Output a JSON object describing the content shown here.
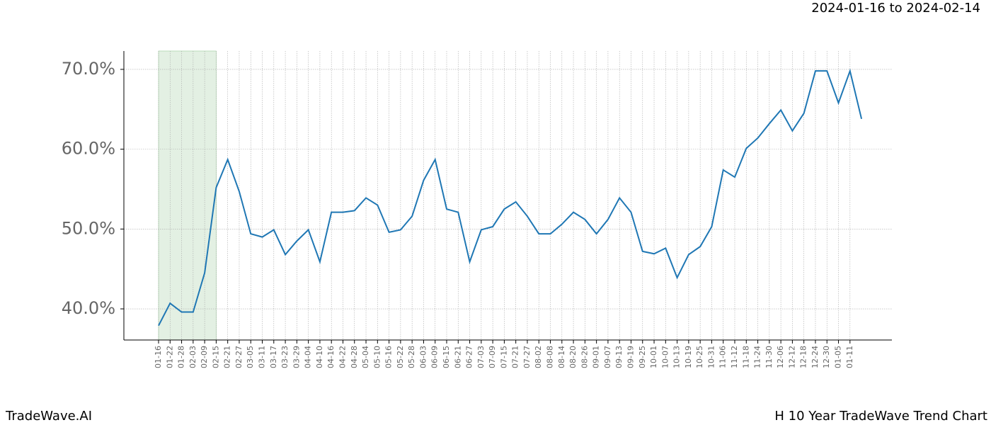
{
  "chart_data": {
    "type": "line",
    "date_range": "2024-01-16 to 2024-02-14",
    "brand": "TradeWave.AI",
    "title": "H 10 Year TradeWave Trend Chart",
    "categories": [
      "01-16",
      "01-22",
      "01-28",
      "02-03",
      "02-09",
      "02-15",
      "02-21",
      "02-27",
      "03-05",
      "03-11",
      "03-17",
      "03-23",
      "03-29",
      "04-04",
      "04-10",
      "04-16",
      "04-22",
      "04-28",
      "05-04",
      "05-10",
      "05-16",
      "05-22",
      "05-28",
      "06-03",
      "06-09",
      "06-15",
      "06-21",
      "06-27",
      "07-03",
      "07-09",
      "07-15",
      "07-21",
      "07-27",
      "08-02",
      "08-08",
      "08-14",
      "08-20",
      "08-26",
      "09-01",
      "09-07",
      "09-13",
      "09-19",
      "09-25",
      "10-01",
      "10-07",
      "10-13",
      "10-19",
      "10-25",
      "10-31",
      "11-06",
      "11-12",
      "11-18",
      "11-24",
      "11-30",
      "12-06",
      "12-12",
      "12-18",
      "12-24",
      "12-30",
      "01-05",
      "01-11",
      null
    ],
    "values": [
      37.9,
      40.7,
      39.6,
      39.6,
      44.5,
      55.2,
      58.7,
      54.7,
      49.4,
      49.0,
      49.9,
      46.8,
      48.5,
      49.9,
      45.9,
      52.1,
      52.1,
      52.3,
      53.9,
      53.0,
      49.6,
      49.9,
      51.6,
      56.1,
      58.7,
      52.5,
      52.1,
      45.9,
      49.9,
      50.3,
      52.5,
      53.4,
      51.6,
      49.4,
      49.4,
      50.6,
      52.1,
      51.2,
      49.4,
      51.2,
      53.9,
      52.1,
      47.2,
      46.9,
      47.6,
      43.9,
      46.8,
      47.8,
      50.3,
      57.4,
      56.5,
      60.1,
      61.4,
      63.2,
      64.9,
      62.3,
      64.5,
      69.8,
      69.8,
      65.8,
      69.8,
      63.8
    ],
    "color": "#1f77b4",
    "highlight_range": [
      "01-16",
      "02-15"
    ],
    "highlight_color": "#e3f0e3",
    "ylim": [
      36.1,
      72.3
    ],
    "yticks": [
      {
        "value": 40,
        "label": "40.0%"
      },
      {
        "value": 50,
        "label": "50.0%"
      },
      {
        "value": 60,
        "label": "60.0%"
      },
      {
        "value": 70,
        "label": "70.0%"
      }
    ],
    "grid": true
  }
}
